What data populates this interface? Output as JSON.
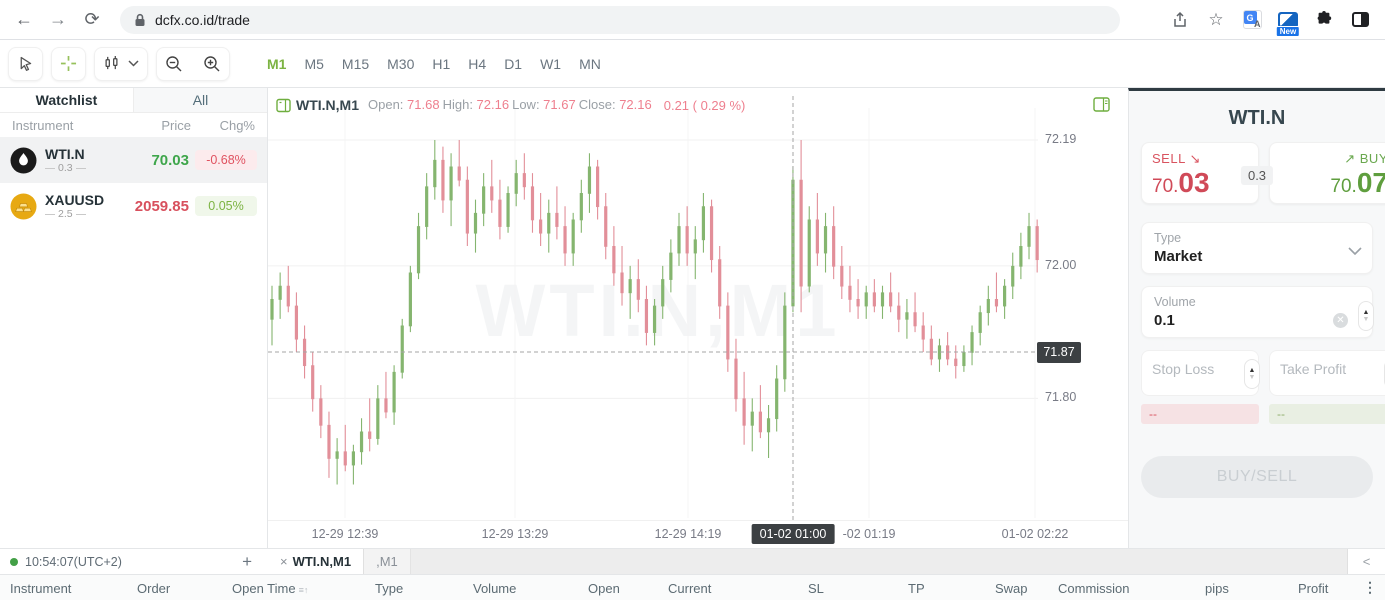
{
  "browser": {
    "url": "dcfx.co.id/trade",
    "new_badge": "New"
  },
  "toolbar": {
    "timeframes": [
      {
        "label": "M1",
        "active": true
      },
      {
        "label": "M5"
      },
      {
        "label": "M15"
      },
      {
        "label": "M30"
      },
      {
        "label": "H1"
      },
      {
        "label": "H4"
      },
      {
        "label": "D1"
      },
      {
        "label": "W1"
      },
      {
        "label": "MN"
      }
    ]
  },
  "watchlist": {
    "tabs": [
      {
        "label": "Watchlist",
        "active": true
      },
      {
        "label": "All",
        "active": false
      }
    ],
    "columns": [
      "Instrument",
      "Price",
      "Chg%"
    ],
    "rows": [
      {
        "symbol": "WTI.N",
        "spread": "0.3",
        "price": "70.03",
        "price_color": "#3ea64b",
        "change": "-0.68%",
        "change_color": "#e05260",
        "change_bg": "#fcebed",
        "icon": "oil-drop",
        "selected": true
      },
      {
        "symbol": "XAUUSD",
        "spread": "2.5",
        "price": "2059.85",
        "price_color": "#d8505d",
        "change": "0.05%",
        "change_color": "#7cb342",
        "change_bg": "#f0f7ea",
        "icon": "gold-bars",
        "selected": false
      }
    ]
  },
  "chart": {
    "symbol": "WTI.N,M1",
    "legend": [
      {
        "label": "Open:",
        "value": "71.68"
      },
      {
        "label": "High:",
        "value": "72.16"
      },
      {
        "label": "Low:",
        "value": "71.67"
      },
      {
        "label": "Close:",
        "value": "72.16"
      }
    ],
    "change_text": "0.21 ( 0.29 %)",
    "watermark": "WTI.N,M1",
    "y_ticks": [
      {
        "label": "72.19",
        "price": 72.19
      },
      {
        "label": "72.00",
        "price": 72.0
      },
      {
        "label": "71.80",
        "price": 71.8
      }
    ],
    "price_line": {
      "label": "71.87",
      "price": 71.87
    },
    "x_ticks": [
      {
        "label": "12-29 12:39",
        "x": 77
      },
      {
        "label": "12-29 13:29",
        "x": 247
      },
      {
        "label": "12-29 14:19",
        "x": 420
      },
      {
        "label": "-02 01:19",
        "x": 601
      },
      {
        "label": "01-02 02:22",
        "x": 767
      }
    ],
    "time_badge": {
      "label": "01-02 01:00",
      "x": 525
    }
  },
  "chart_data": {
    "type": "candlestick",
    "instrument": "WTI.N",
    "timeframe": "M1",
    "up_color": "#85b56f",
    "down_color": "#e28f99",
    "price_range_visible": [
      71.67,
      72.19
    ],
    "candles": [
      [
        71.92,
        71.97,
        71.88,
        71.95
      ],
      [
        71.95,
        71.99,
        71.92,
        71.97
      ],
      [
        71.97,
        72.0,
        71.93,
        71.94
      ],
      [
        71.94,
        71.96,
        71.87,
        71.89
      ],
      [
        71.89,
        71.91,
        71.83,
        71.85
      ],
      [
        71.85,
        71.87,
        71.78,
        71.8
      ],
      [
        71.8,
        71.82,
        71.74,
        71.76
      ],
      [
        71.76,
        71.78,
        71.68,
        71.71
      ],
      [
        71.71,
        71.74,
        71.67,
        71.72
      ],
      [
        71.72,
        71.76,
        71.69,
        71.7
      ],
      [
        71.7,
        71.73,
        71.67,
        71.72
      ],
      [
        71.72,
        71.77,
        71.7,
        71.75
      ],
      [
        71.75,
        71.8,
        71.72,
        71.74
      ],
      [
        71.74,
        71.82,
        71.73,
        71.8
      ],
      [
        71.8,
        71.84,
        71.77,
        71.78
      ],
      [
        71.78,
        71.85,
        71.76,
        71.84
      ],
      [
        71.84,
        71.92,
        71.83,
        71.91
      ],
      [
        71.91,
        72.0,
        71.9,
        71.99
      ],
      [
        71.99,
        72.08,
        71.98,
        72.06
      ],
      [
        72.06,
        72.14,
        72.04,
        72.12
      ],
      [
        72.12,
        72.19,
        72.1,
        72.16
      ],
      [
        72.16,
        72.18,
        72.08,
        72.1
      ],
      [
        72.1,
        72.17,
        72.06,
        72.15
      ],
      [
        72.15,
        72.19,
        72.12,
        72.13
      ],
      [
        72.13,
        72.15,
        72.03,
        72.05
      ],
      [
        72.05,
        72.1,
        72.02,
        72.08
      ],
      [
        72.08,
        72.14,
        72.06,
        72.12
      ],
      [
        72.12,
        72.16,
        72.08,
        72.1
      ],
      [
        72.1,
        72.13,
        72.04,
        72.06
      ],
      [
        72.06,
        72.12,
        72.05,
        72.11
      ],
      [
        72.11,
        72.16,
        72.09,
        72.14
      ],
      [
        72.14,
        72.17,
        72.1,
        72.12
      ],
      [
        72.12,
        72.14,
        72.05,
        72.07
      ],
      [
        72.07,
        72.11,
        72.03,
        72.05
      ],
      [
        72.05,
        72.1,
        72.02,
        72.08
      ],
      [
        72.08,
        72.12,
        72.04,
        72.06
      ],
      [
        72.06,
        72.09,
        72.0,
        72.02
      ],
      [
        72.02,
        72.08,
        72.0,
        72.07
      ],
      [
        72.07,
        72.13,
        72.05,
        72.11
      ],
      [
        72.11,
        72.17,
        72.08,
        72.15
      ],
      [
        72.15,
        72.16,
        72.07,
        72.09
      ],
      [
        72.09,
        72.11,
        72.01,
        72.03
      ],
      [
        72.03,
        72.06,
        71.97,
        71.99
      ],
      [
        71.99,
        72.03,
        71.94,
        71.96
      ],
      [
        71.96,
        72.0,
        71.92,
        71.98
      ],
      [
        71.98,
        72.01,
        71.93,
        71.95
      ],
      [
        71.95,
        71.97,
        71.88,
        71.9
      ],
      [
        71.9,
        71.95,
        71.88,
        71.94
      ],
      [
        71.94,
        72.0,
        71.92,
        71.98
      ],
      [
        71.98,
        72.04,
        71.96,
        72.02
      ],
      [
        72.02,
        72.08,
        72.0,
        72.06
      ],
      [
        72.06,
        72.09,
        72.0,
        72.02
      ],
      [
        72.02,
        72.06,
        71.98,
        72.04
      ],
      [
        72.04,
        72.11,
        72.02,
        72.09
      ],
      [
        72.09,
        72.1,
        71.99,
        72.01
      ],
      [
        72.01,
        72.03,
        71.92,
        71.94
      ],
      [
        71.94,
        71.96,
        71.84,
        71.86
      ],
      [
        71.86,
        71.89,
        71.78,
        71.8
      ],
      [
        71.8,
        71.84,
        71.73,
        71.76
      ],
      [
        71.76,
        71.8,
        71.72,
        71.78
      ],
      [
        71.78,
        71.82,
        71.74,
        71.75
      ],
      [
        71.75,
        71.79,
        71.71,
        71.77
      ],
      [
        71.77,
        71.85,
        71.75,
        71.83
      ],
      [
        71.83,
        71.96,
        71.81,
        71.94
      ],
      [
        71.94,
        72.15,
        71.93,
        72.13
      ],
      [
        72.13,
        72.19,
        71.93,
        71.97
      ],
      [
        71.97,
        72.09,
        71.96,
        72.07
      ],
      [
        72.07,
        72.11,
        72.0,
        72.02
      ],
      [
        72.02,
        72.08,
        71.99,
        72.06
      ],
      [
        72.06,
        72.09,
        71.98,
        72.0
      ],
      [
        72.0,
        72.03,
        71.95,
        71.97
      ],
      [
        71.97,
        72.0,
        71.93,
        71.95
      ],
      [
        71.95,
        71.98,
        71.92,
        71.94
      ],
      [
        71.94,
        71.97,
        71.92,
        71.96
      ],
      [
        71.96,
        71.98,
        71.93,
        71.94
      ],
      [
        71.94,
        71.97,
        71.92,
        71.96
      ],
      [
        71.96,
        71.99,
        71.93,
        71.94
      ],
      [
        71.94,
        71.96,
        71.9,
        71.92
      ],
      [
        71.92,
        71.95,
        71.89,
        71.93
      ],
      [
        71.93,
        71.96,
        71.9,
        71.91
      ],
      [
        71.91,
        71.93,
        71.87,
        71.89
      ],
      [
        71.89,
        71.91,
        71.85,
        71.86
      ],
      [
        71.86,
        71.89,
        71.84,
        71.88
      ],
      [
        71.88,
        71.9,
        71.85,
        71.86
      ],
      [
        71.86,
        71.88,
        71.83,
        71.85
      ],
      [
        71.85,
        71.88,
        71.84,
        71.87
      ],
      [
        71.87,
        71.91,
        71.85,
        71.9
      ],
      [
        71.9,
        71.94,
        71.88,
        71.93
      ],
      [
        71.93,
        71.97,
        71.91,
        71.95
      ],
      [
        71.95,
        71.99,
        71.93,
        71.94
      ],
      [
        71.94,
        71.98,
        71.92,
        71.97
      ],
      [
        71.97,
        72.02,
        71.95,
        72.0
      ],
      [
        72.0,
        72.05,
        71.98,
        72.03
      ],
      [
        72.03,
        72.08,
        72.01,
        72.06
      ],
      [
        72.06,
        72.07,
        71.99,
        72.01
      ]
    ]
  },
  "trade_panel": {
    "title": "WTI.N",
    "sell": {
      "label": "SELL",
      "price_small": "70.",
      "price_big": "03"
    },
    "buy": {
      "label": "BUY",
      "price_small": "70.",
      "price_big": "07"
    },
    "spread": "0.3",
    "type": {
      "label": "Type",
      "value": "Market"
    },
    "volume": {
      "label": "Volume",
      "value": "0.1"
    },
    "stop_loss_placeholder": "Stop Loss",
    "take_profit_placeholder": "Take Profit",
    "sl_hint": "--",
    "tp_hint": "--",
    "submit_label": "BUY/SELL"
  },
  "status_bar": {
    "time": "10:54:07(UTC+2)",
    "add_label": "+",
    "tabs": [
      {
        "close": "×",
        "label": "WTI.N,M1",
        "active": true
      },
      {
        "label": ",M1",
        "active": false
      }
    ],
    "collapse": "<"
  },
  "positions_table": {
    "columns": [
      "Instrument",
      "Order",
      "Open Time",
      "Type",
      "Volume",
      "Open",
      "Current",
      "SL",
      "TP",
      "Swap",
      "Commission",
      "pips",
      "Profit"
    ]
  }
}
